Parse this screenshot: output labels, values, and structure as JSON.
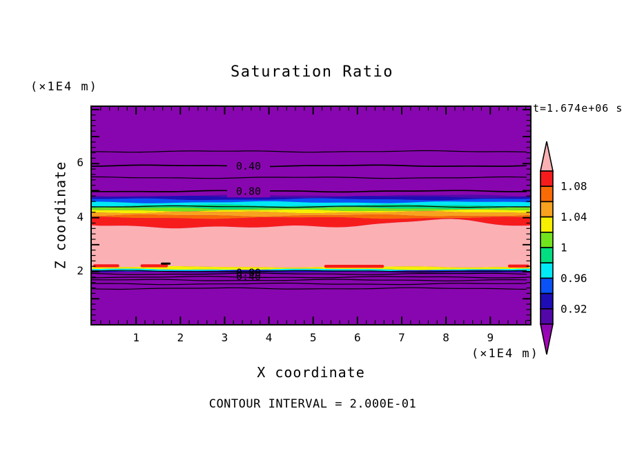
{
  "title": "Saturation Ratio",
  "annotations": {
    "y_axis_units": "(×1E4 m)",
    "x_axis_units": "(×1E4 m)",
    "time_stamp": "t=1.674e+06 s",
    "contour_interval_note": "CONTOUR INTERVAL = 2.000E-01"
  },
  "axes": {
    "x_label": "X coordinate",
    "y_label": "Z coordinate",
    "x_tick_values": [
      1,
      2,
      3,
      4,
      5,
      6,
      7,
      8,
      9
    ],
    "y_tick_values": [
      2,
      4,
      6
    ],
    "x_range": [
      0,
      9.9
    ],
    "y_range": [
      0,
      8.1
    ]
  },
  "colorbar": {
    "tick_labels": [
      "1.08",
      "1.04",
      "1",
      "0.96",
      "0.92"
    ],
    "tick_values": [
      1.08,
      1.04,
      1.0,
      0.96,
      0.92
    ],
    "segments_top_to_bottom": [
      "red",
      "orangered",
      "orange",
      "yellow",
      "chartreuse",
      "spring",
      "cyan",
      "blue",
      "navy",
      "violet"
    ],
    "over_color_key": "pink",
    "under_color_key": "magenta"
  },
  "colors": {
    "purple": "#8806AF",
    "violet": "#5208A8",
    "navy": "#1E0DB5",
    "blue": "#0A52F5",
    "cyan": "#00E9F5",
    "spring": "#00DE81",
    "chartreuse": "#72E41E",
    "yellow": "#F6EF00",
    "orange": "#F9A21F",
    "orangered": "#F86A06",
    "red": "#F71C1C",
    "pink": "#FBB1B3",
    "magenta": "#BC05C3",
    "axis": "#000000"
  },
  "chart_data": {
    "type": "heatmap",
    "title": "Saturation Ratio",
    "xlabel": "X coordinate",
    "ylabel": "Z coordinate",
    "xlim": [
      0,
      9.9
    ],
    "zlim": [
      0,
      8.1
    ],
    "contour_interval": 0.2,
    "fill_levels": [
      0.9,
      0.92,
      0.94,
      0.96,
      0.98,
      1.0,
      1.02,
      1.04,
      1.06,
      1.08,
      1.1
    ],
    "description": "Horizontally stratified saturation-ratio field: under-saturated purple (s<0.90) above z≈4.8 and below z≈1.96; rainbow transition 3.99<z<4.82; super-saturated pink core (s>1.10) for 2.18<z<3.76; thin mirrored transition 1.96<z<2.18.",
    "bands": [
      {
        "color": "violet",
        "s_range": [
          0.9,
          0.92
        ],
        "z_top": 4.82,
        "z_bottom": 4.77
      },
      {
        "color": "navy",
        "s_range": [
          0.92,
          0.94
        ],
        "z_top": 4.77,
        "z_bottom": 4.68
      },
      {
        "color": "blue",
        "s_range": [
          0.94,
          0.96
        ],
        "z_top": 4.68,
        "z_bottom": 4.57
      },
      {
        "color": "cyan",
        "s_range": [
          0.96,
          0.98
        ],
        "z_top": 4.57,
        "z_bottom": 4.45
      },
      {
        "color": "spring",
        "s_range": [
          0.98,
          1.0
        ],
        "z_top": 4.45,
        "z_bottom": 4.35
      },
      {
        "color": "chartreuse",
        "s_range": [
          1.0,
          1.02
        ],
        "z_top": 4.35,
        "z_bottom": 4.27
      },
      {
        "color": "yellow",
        "s_range": [
          1.02,
          1.04
        ],
        "z_top": 4.27,
        "z_bottom": 4.2
      },
      {
        "color": "orange",
        "s_range": [
          1.04,
          1.06
        ],
        "z_top": 4.2,
        "z_bottom": 4.08
      },
      {
        "color": "orangered",
        "s_range": [
          1.06,
          1.08
        ],
        "z_top": 4.08,
        "z_bottom": 3.99
      },
      {
        "color": "red",
        "s_range": [
          1.08,
          1.1
        ],
        "z_top": 3.99,
        "z_bottom": 3.76
      },
      {
        "color": "pink",
        "s_range": [
          1.1,
          null
        ],
        "z_top": 3.76,
        "z_bottom": 2.18
      },
      {
        "color": "yellow",
        "s_range": [
          1.02,
          1.04
        ],
        "z_top": 2.18,
        "z_bottom": 2.09
      },
      {
        "color": "cyan",
        "s_range": [
          0.96,
          0.98
        ],
        "z_top": 2.09,
        "z_bottom": 2.04
      },
      {
        "color": "navy",
        "s_range": [
          0.92,
          0.94
        ],
        "z_top": 2.04,
        "z_bottom": 2.0
      },
      {
        "color": "violet",
        "s_range": [
          0.9,
          0.92
        ],
        "z_top": 2.0,
        "z_bottom": 1.96
      }
    ],
    "red_patches": [
      {
        "x0": 0.03,
        "x1": 0.62,
        "z": 2.22
      },
      {
        "x0": 1.1,
        "x1": 1.72,
        "z": 2.22
      },
      {
        "x0": 5.25,
        "x1": 6.6,
        "z": 2.2
      },
      {
        "x0": 9.4,
        "x1": 9.88,
        "z": 2.21
      }
    ],
    "dark_specks": [
      {
        "x0": 1.56,
        "x1": 1.78,
        "z": 2.3
      }
    ],
    "contour_lines": [
      {
        "z": 6.45,
        "label": null
      },
      {
        "z": 5.92,
        "label": "0.40"
      },
      {
        "z": 5.48,
        "label": null
      },
      {
        "z": 4.98,
        "label": "0.80"
      },
      {
        "z": 4.41,
        "label": null
      },
      {
        "z": 2.02,
        "label": null
      },
      {
        "z": 1.92,
        "label": null
      },
      {
        "z": 1.8,
        "label": null
      },
      {
        "z": 1.69,
        "label": null
      },
      {
        "z": 1.55,
        "label": null
      },
      {
        "z": 1.38,
        "label": null
      }
    ],
    "overlapped_contour_labels": [
      {
        "text": "0.80",
        "z": 1.97
      },
      {
        "text": "0.40",
        "z": 1.83
      }
    ]
  }
}
